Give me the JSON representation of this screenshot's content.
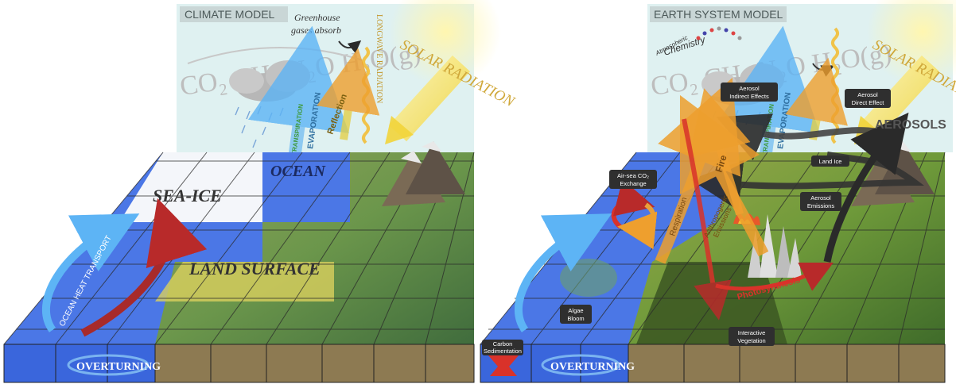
{
  "left_panel": {
    "title": "CLIMATE MODEL",
    "ghg_formula": "CO₂ CH₄ N₂O H₂O(g)",
    "greenhouse_line1": "Greenhouse",
    "greenhouse_line2": "gases absorb",
    "longwave": "LONGWAVE RADIATION",
    "solar": "SOLAR RADIATION",
    "reflection": "Reflection",
    "evaporation": "EVAPORATION",
    "transpiration": "TRANSPIRATION",
    "sea_ice": "SEA-ICE",
    "ocean": "OCEAN",
    "land_surface": "LAND SURFACE",
    "ocean_heat_transport": "OCEAN HEAT TRANSPORT",
    "overturning": "OVERTURNING"
  },
  "right_panel": {
    "title": "EARTH SYSTEM MODEL",
    "atmospheric": "Atmospheric",
    "chemistry": "Chemistry",
    "ghg_formula": "CO₂ CH₄ N₂O H₂O(g)",
    "solar": "SOLAR RADIATION",
    "evaporation": "EVAPORATION",
    "transpiration": "TRANSPIRATION",
    "aerosols": "AEROSOLS",
    "aerosol_indirect_1": "Aerosol",
    "aerosol_indirect_2": "Indirect Effects",
    "aerosol_direct_1": "Aerosol",
    "aerosol_direct_2": "Direct Effect",
    "land_ice": "Land Ice",
    "aerosol_emissions_1": "Aerosol",
    "aerosol_emissions_2": "Emissions",
    "airsea_1": "Air-sea CO₂",
    "airsea_2": "Exchange",
    "respiration": "Respiration",
    "fire": "Fire",
    "anthropogenic_1": "Anthropogenic",
    "anthropogenic_2": "Emissions",
    "photosynthesis": "Photosynthesis",
    "algae_1": "Algae",
    "algae_2": "Bloom",
    "interactive_1": "Interactive",
    "interactive_2": "Vegetation",
    "carbon_1": "Carbon",
    "carbon_2": "Sedimentation",
    "overturning": "OVERTURNING"
  },
  "colors": {
    "sky": "#dcefef",
    "ocean": "#3d6fe0",
    "sea_ice": "#f4f6fa",
    "land": "#7e9b3c",
    "soil": "#8d7a52",
    "warm_arrow": "#e9a13a",
    "hot_arrow": "#d9322a",
    "cold_arrow": "#5bb0f0"
  }
}
